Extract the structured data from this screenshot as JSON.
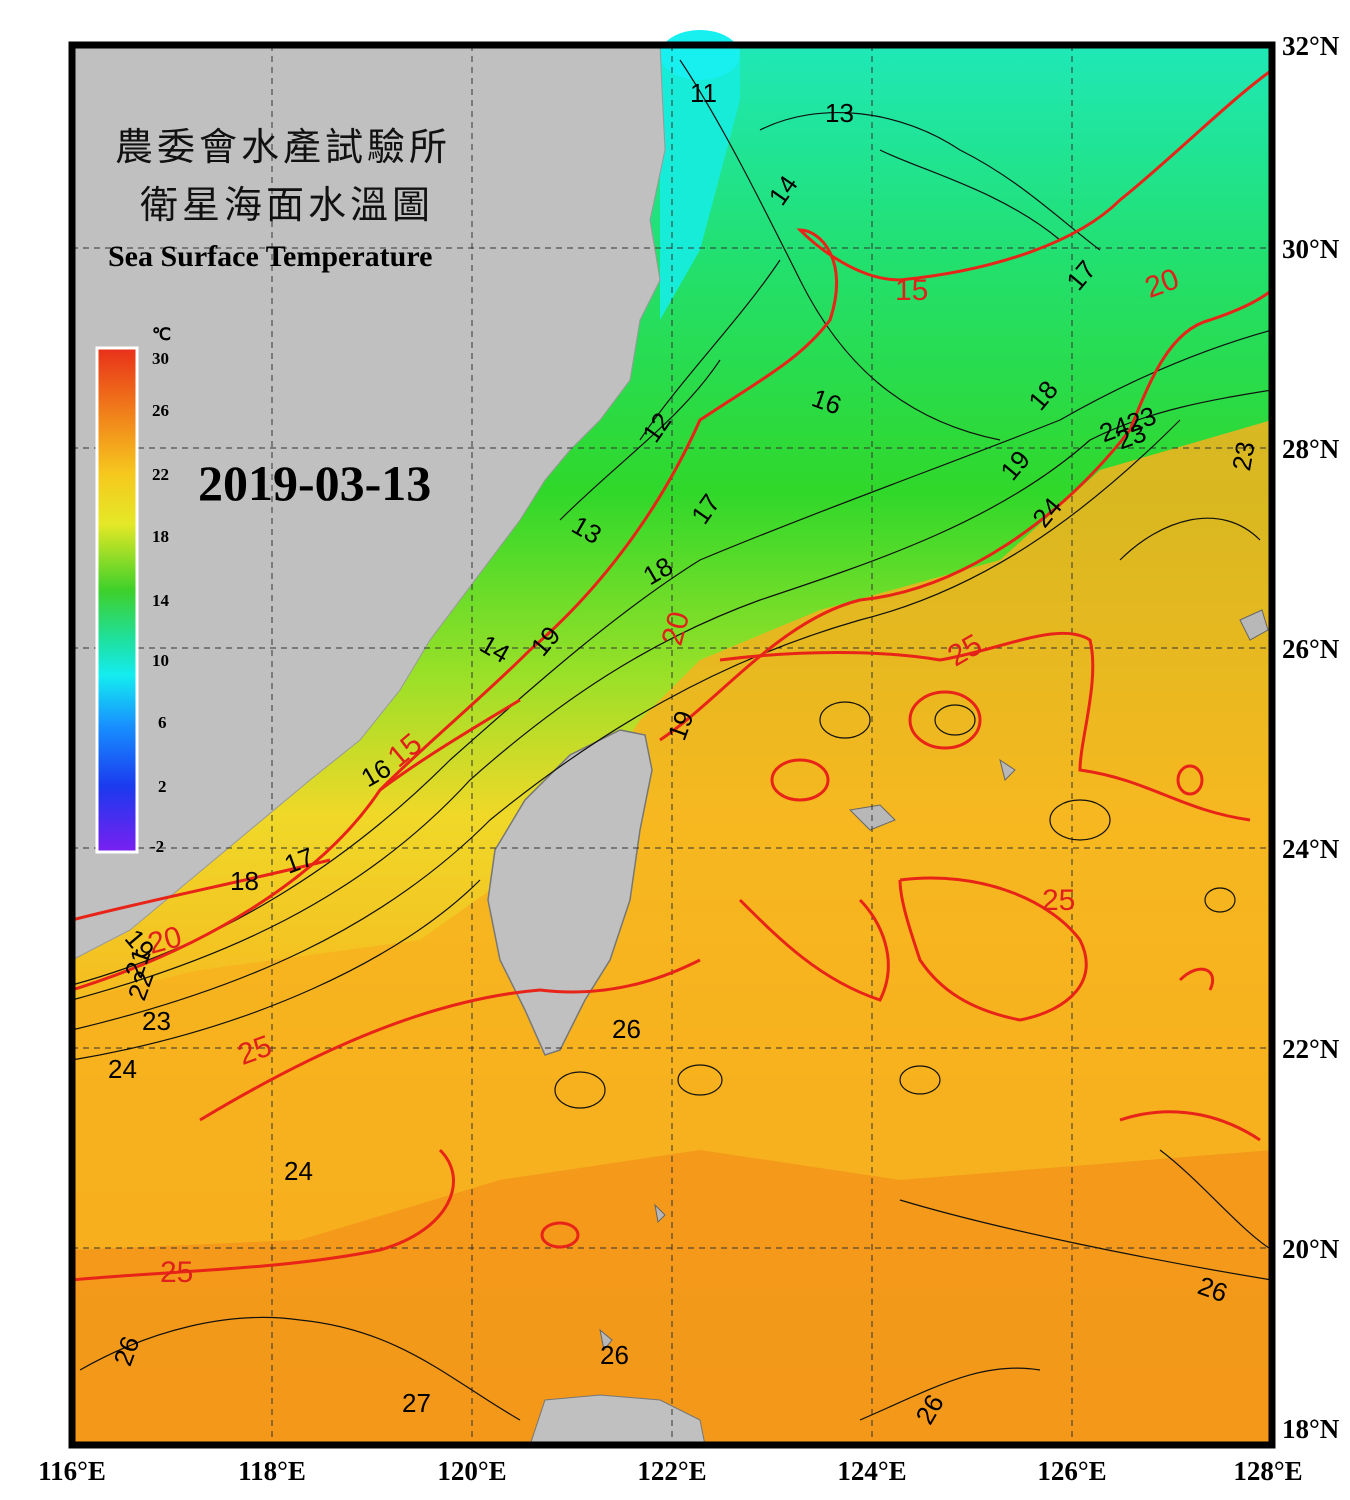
{
  "title": {
    "line1_zh": "農委會水產試驗所",
    "line2_zh": "衛星海面水溫圖",
    "en": "Sea Surface Temperature"
  },
  "date": "2019-03-13",
  "axes": {
    "longitude_labels": [
      "116°E",
      "118°E",
      "120°E",
      "122°E",
      "124°E",
      "126°E",
      "128°E"
    ],
    "latitude_labels": [
      "32°N",
      "30°N",
      "28°N",
      "26°N",
      "24°N",
      "22°N",
      "20°N",
      "18°N"
    ]
  },
  "colorbar": {
    "unit": "℃",
    "ticks": [
      "30",
      "26",
      "22",
      "18",
      "14",
      "10",
      "6",
      "2",
      "-2"
    ],
    "colors": [
      "#e8301a",
      "#f39a1a",
      "#f6d820",
      "#c2e826",
      "#1ecb1e",
      "#18e8a0",
      "#14e8f0",
      "#1890ff",
      "#1a3aee",
      "#6a18f0"
    ]
  },
  "contour_labels": [
    {
      "text": "11"
    },
    {
      "text": "13"
    },
    {
      "text": "14"
    },
    {
      "text": "12"
    },
    {
      "text": "13"
    },
    {
      "text": "16"
    },
    {
      "text": "17"
    },
    {
      "text": "18"
    },
    {
      "text": "18"
    },
    {
      "text": "19"
    },
    {
      "text": "17"
    },
    {
      "text": "19"
    },
    {
      "text": "24"
    },
    {
      "text": "23"
    },
    {
      "text": "14"
    },
    {
      "text": "19"
    },
    {
      "text": "16"
    },
    {
      "text": "17"
    },
    {
      "text": "18"
    },
    {
      "text": "19"
    },
    {
      "text": "21"
    },
    {
      "text": "22"
    },
    {
      "text": "23"
    },
    {
      "text": "24"
    },
    {
      "text": "24"
    },
    {
      "text": "26"
    },
    {
      "text": "26"
    },
    {
      "text": "26"
    },
    {
      "text": "27"
    },
    {
      "text": "26"
    },
    {
      "text": "26"
    },
    {
      "text": "2423"
    },
    {
      "text": "23"
    }
  ],
  "isotherm_labels": [
    {
      "text": "15"
    },
    {
      "text": "20"
    },
    {
      "text": "20"
    },
    {
      "text": "15"
    },
    {
      "text": "20"
    },
    {
      "text": "25"
    },
    {
      "text": "25"
    },
    {
      "text": "25"
    },
    {
      "text": "25"
    }
  ]
}
